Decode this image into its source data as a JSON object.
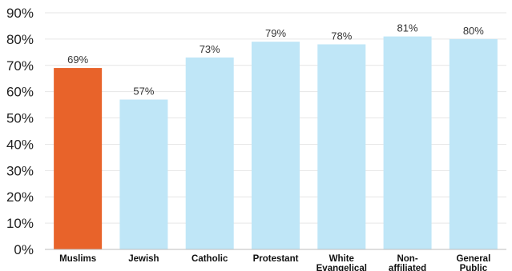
{
  "chart_data": {
    "type": "bar",
    "categories": [
      [
        "Muslims"
      ],
      [
        "Jewish"
      ],
      [
        "Catholic"
      ],
      [
        "Protestant"
      ],
      [
        "White",
        "Evangelical"
      ],
      [
        "Non-",
        "affiliated"
      ],
      [
        "General",
        "Public"
      ]
    ],
    "values": [
      69,
      57,
      73,
      79,
      78,
      81,
      80
    ],
    "data_labels": [
      "69%",
      "57%",
      "73%",
      "79%",
      "78%",
      "81%",
      "80%"
    ],
    "y_ticks": [
      "0%",
      "10%",
      "20%",
      "30%",
      "40%",
      "50%",
      "60%",
      "70%",
      "80%",
      "90%"
    ],
    "ylim": [
      0,
      90
    ],
    "grid": true,
    "legend": "none",
    "title": "",
    "xlabel": "",
    "ylabel": "",
    "colors": {
      "highlight": "#e8632a",
      "default": "#bfe6f7"
    },
    "highlight_index": 0
  }
}
